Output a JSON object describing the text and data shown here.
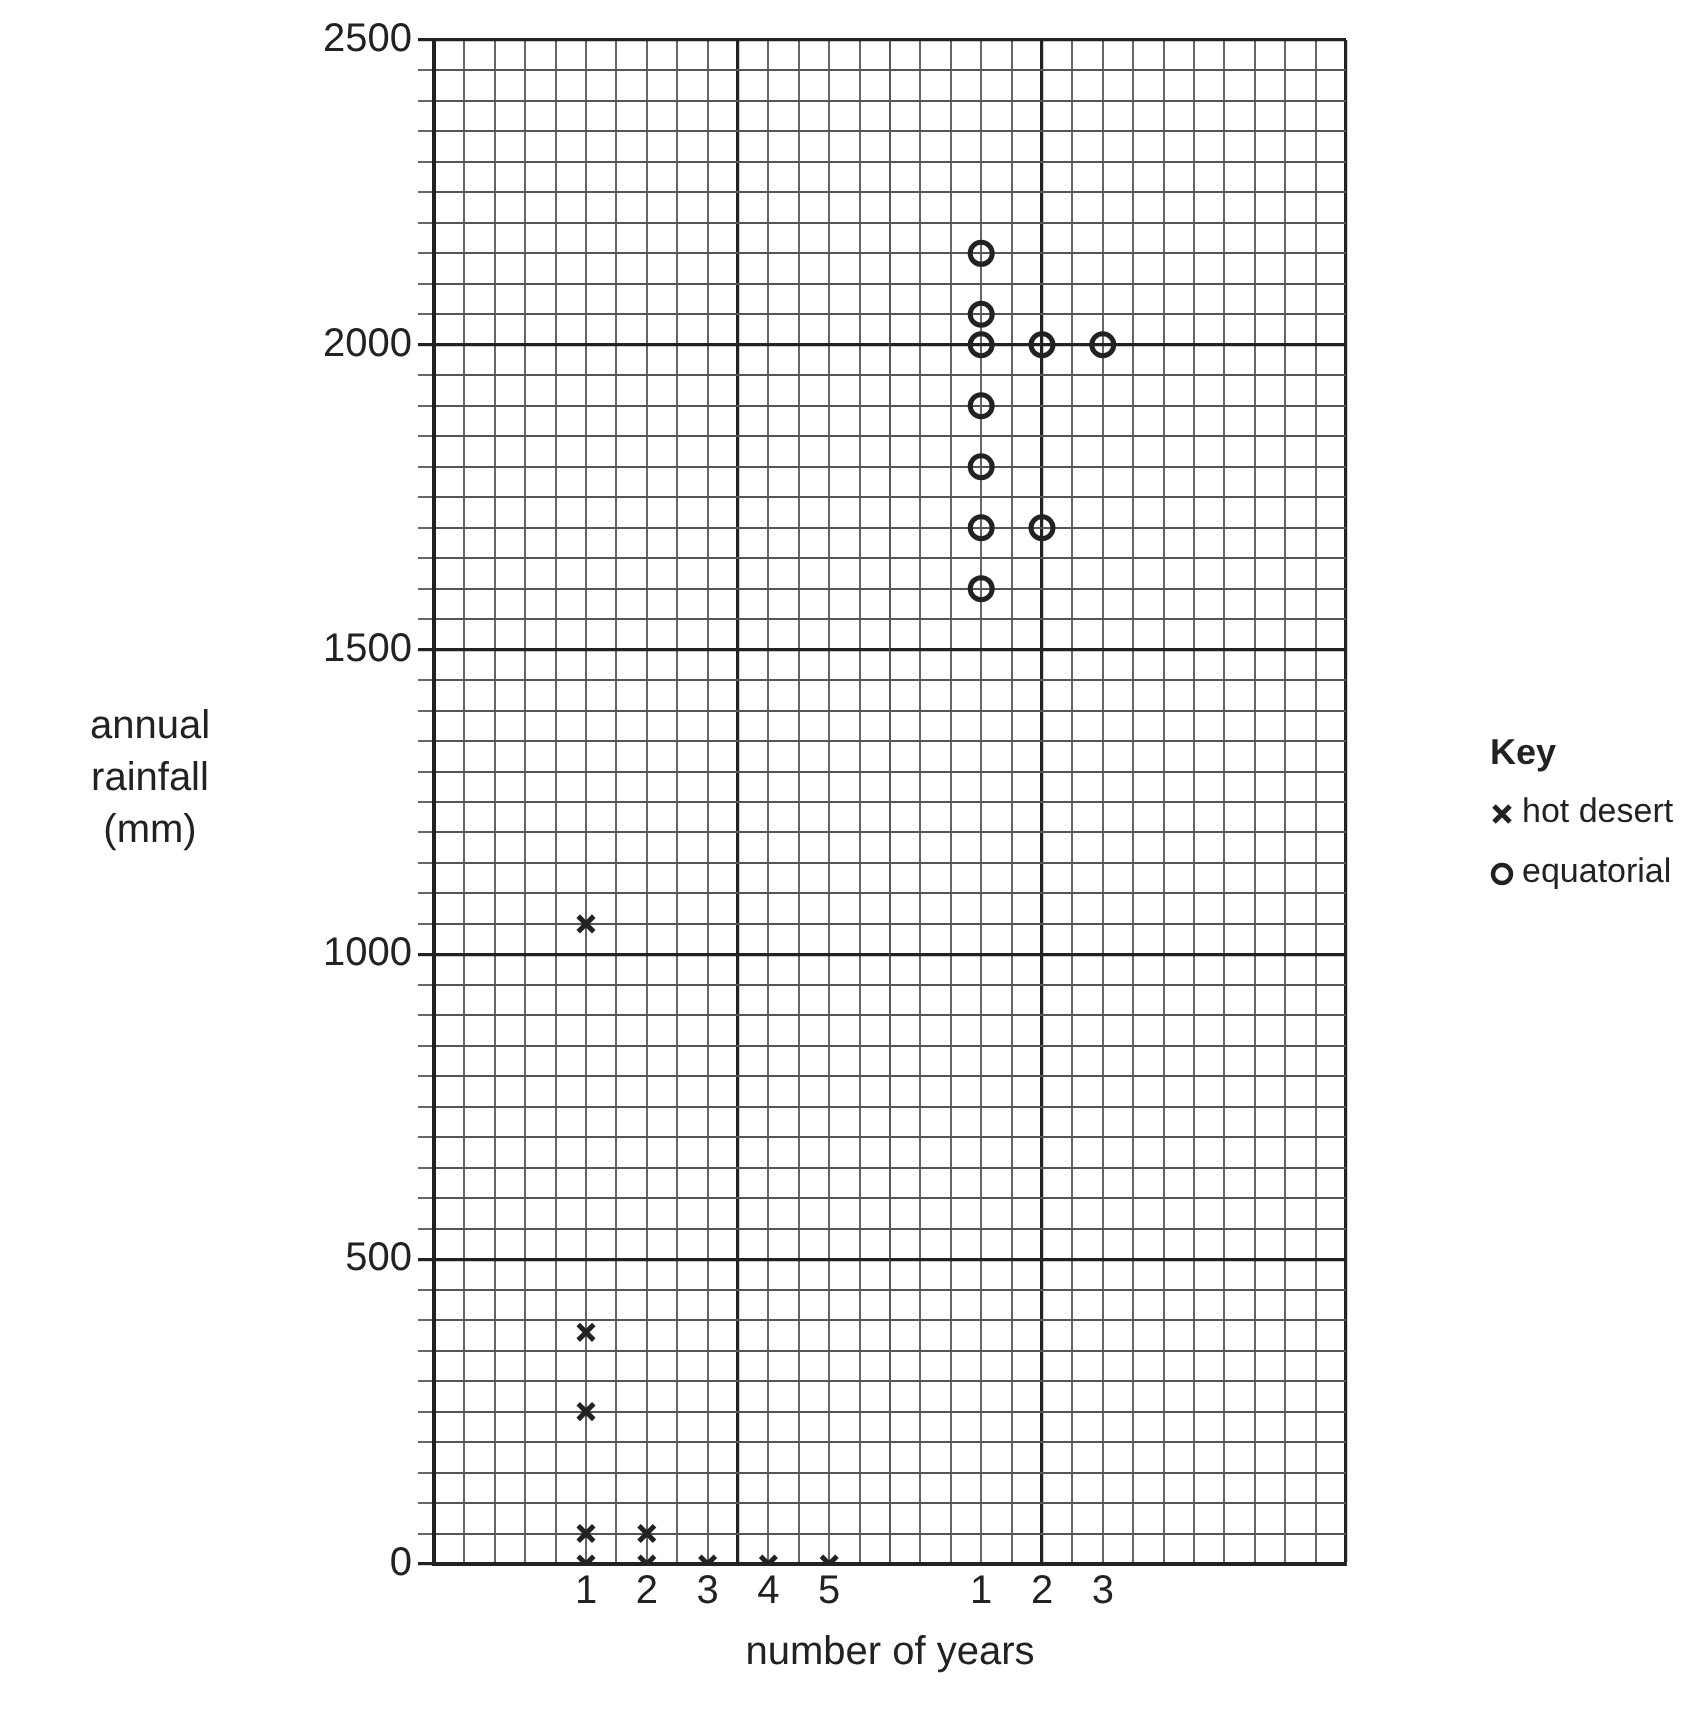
{
  "chart_data": [
    {
      "type": "scatter",
      "xlabel": "number of years",
      "ylabel": "annual rainfall (mm)",
      "grid": true,
      "legend": "right",
      "categories": [
        null,
        null,
        null,
        null,
        null,
        "1",
        null,
        "2",
        null,
        "3",
        null,
        "4",
        null,
        "5",
        null,
        null
      ],
      "ylim": [
        0,
        2500
      ],
      "yticks": [
        0,
        {
          "value": 50,
          "label": null
        },
        {
          "value": 100,
          "label": null
        },
        {
          "value": 150,
          "label": null
        },
        {
          "value": 200,
          "label": null
        },
        {
          "value": 250,
          "label": null
        },
        {
          "value": 300,
          "label": null
        },
        {
          "value": 350,
          "label": null
        },
        {
          "value": 400,
          "label": null
        },
        {
          "value": 450,
          "label": null
        },
        500,
        {
          "value": 550,
          "label": null
        },
        {
          "value": 600,
          "label": null
        },
        {
          "value": 650,
          "label": null
        },
        {
          "value": 700,
          "label": null
        },
        {
          "value": 750,
          "label": null
        },
        {
          "value": 800,
          "label": null
        },
        {
          "value": 850,
          "label": null
        },
        {
          "value": 900,
          "label": null
        },
        {
          "value": 950,
          "label": null
        },
        1000,
        {
          "value": 1050,
          "label": null
        },
        {
          "value": 1100,
          "label": null
        },
        {
          "value": 1150,
          "label": null
        },
        {
          "value": 1200,
          "label": null
        },
        {
          "value": 1250,
          "label": null
        },
        {
          "value": 1300,
          "label": null
        },
        {
          "value": 1350,
          "label": null
        },
        {
          "value": 1400,
          "label": null
        },
        {
          "value": 1450,
          "label": null
        },
        1500,
        {
          "value": 1550,
          "label": null
        },
        {
          "value": 1600,
          "label": null
        },
        {
          "value": 1650,
          "label": null
        },
        {
          "value": 1700,
          "label": null
        },
        {
          "value": 1750,
          "label": null
        },
        {
          "value": 1800,
          "label": null
        },
        {
          "value": 1850,
          "label": null
        },
        {
          "value": 1900,
          "label": null
        },
        {
          "value": 1950,
          "label": null
        },
        2000,
        {
          "value": 2050,
          "label": null
        },
        {
          "value": 2100,
          "label": null
        },
        {
          "value": 2150,
          "label": null
        },
        {
          "value": 2200,
          "label": null
        },
        {
          "value": 2250,
          "label": null
        },
        {
          "value": 2300,
          "label": null
        },
        {
          "value": 2350,
          "label": null
        },
        {
          "value": 2400,
          "label": null
        },
        {
          "value": 2450,
          "label": null
        },
        2500
      ],
      "series": [
        {
          "name": "hot desert",
          "color": "#222222",
          "marker": "cross",
          "x": [
            "1",
            "1",
            "1",
            "1",
            "1",
            "2",
            "2",
            "3",
            "4",
            "5"
          ],
          "values": [
            1050,
            380,
            250,
            50,
            0,
            50,
            0,
            0,
            0,
            0
          ]
        }
      ]
    },
    {
      "type": "scatter",
      "legend_title": "Key",
      "legend": "right",
      "grid": true,
      "tick_labels": "x",
      "categories": [
        null,
        null,
        null,
        "1",
        null,
        "2",
        null,
        "3",
        null,
        null,
        null,
        null,
        null,
        null,
        null,
        null
      ],
      "ylim": [
        0,
        2500
      ],
      "yticks": [
        0,
        {
          "value": 50,
          "label": null
        },
        {
          "value": 100,
          "label": null
        },
        {
          "value": 150,
          "label": null
        },
        {
          "value": 200,
          "label": null
        },
        {
          "value": 250,
          "label": null
        },
        {
          "value": 300,
          "label": null
        },
        {
          "value": 350,
          "label": null
        },
        {
          "value": 400,
          "label": null
        },
        {
          "value": 450,
          "label": null
        },
        500,
        {
          "value": 550,
          "label": null
        },
        {
          "value": 600,
          "label": null
        },
        {
          "value": 650,
          "label": null
        },
        {
          "value": 700,
          "label": null
        },
        {
          "value": 750,
          "label": null
        },
        {
          "value": 800,
          "label": null
        },
        {
          "value": 850,
          "label": null
        },
        {
          "value": 900,
          "label": null
        },
        {
          "value": 950,
          "label": null
        },
        1000,
        {
          "value": 1050,
          "label": null
        },
        {
          "value": 1100,
          "label": null
        },
        {
          "value": 1150,
          "label": null
        },
        {
          "value": 1200,
          "label": null
        },
        {
          "value": 1250,
          "label": null
        },
        {
          "value": 1300,
          "label": null
        },
        {
          "value": 1350,
          "label": null
        },
        {
          "value": 1400,
          "label": null
        },
        {
          "value": 1450,
          "label": null
        },
        1500,
        {
          "value": 1550,
          "label": null
        },
        {
          "value": 1600,
          "label": null
        },
        {
          "value": 1650,
          "label": null
        },
        {
          "value": 1700,
          "label": null
        },
        {
          "value": 1750,
          "label": null
        },
        {
          "value": 1800,
          "label": null
        },
        {
          "value": 1850,
          "label": null
        },
        {
          "value": 1900,
          "label": null
        },
        {
          "value": 1950,
          "label": null
        },
        2000,
        {
          "value": 2050,
          "label": null
        },
        {
          "value": 2100,
          "label": null
        },
        {
          "value": 2150,
          "label": null
        },
        {
          "value": 2200,
          "label": null
        },
        {
          "value": 2250,
          "label": null
        },
        {
          "value": 2300,
          "label": null
        },
        {
          "value": 2350,
          "label": null
        },
        {
          "value": 2400,
          "label": null
        },
        {
          "value": 2450,
          "label": null
        },
        2500
      ],
      "series": [
        {
          "name": "equatorial",
          "color": "#222222",
          "marker": "circle",
          "x": [
            "1",
            "1",
            "1",
            "1",
            "1",
            "1",
            "1",
            "2",
            "2",
            "3"
          ],
          "values": [
            2150,
            2050,
            2000,
            1900,
            1800,
            1700,
            1600,
            2000,
            1700,
            2000
          ]
        }
      ]
    }
  ]
}
